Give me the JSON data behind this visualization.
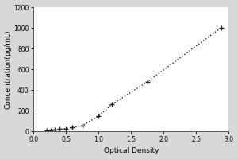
{
  "x_data": [
    0.2,
    0.27,
    0.33,
    0.4,
    0.5,
    0.6,
    0.75,
    1.0,
    1.2,
    1.75,
    2.88
  ],
  "y_data": [
    10,
    13,
    17,
    22,
    28,
    38,
    55,
    150,
    260,
    480,
    1000
  ],
  "xlabel": "Optical Density",
  "ylabel": "Concentration(pg/mL)",
  "xlim": [
    0,
    3
  ],
  "ylim": [
    0,
    1200
  ],
  "xticks": [
    0,
    0.5,
    1,
    1.5,
    2,
    2.5,
    3
  ],
  "yticks": [
    0,
    200,
    400,
    600,
    800,
    1000,
    1200
  ],
  "line_color": "#222222",
  "marker": "+",
  "markersize": 5,
  "linestyle": "dotted",
  "linewidth": 1.0,
  "bg_color": "#d8d8d8",
  "plot_bg_color": "#ffffff",
  "tick_fontsize": 5.5,
  "label_fontsize": 6.5,
  "marker_edgewidth": 1.0
}
